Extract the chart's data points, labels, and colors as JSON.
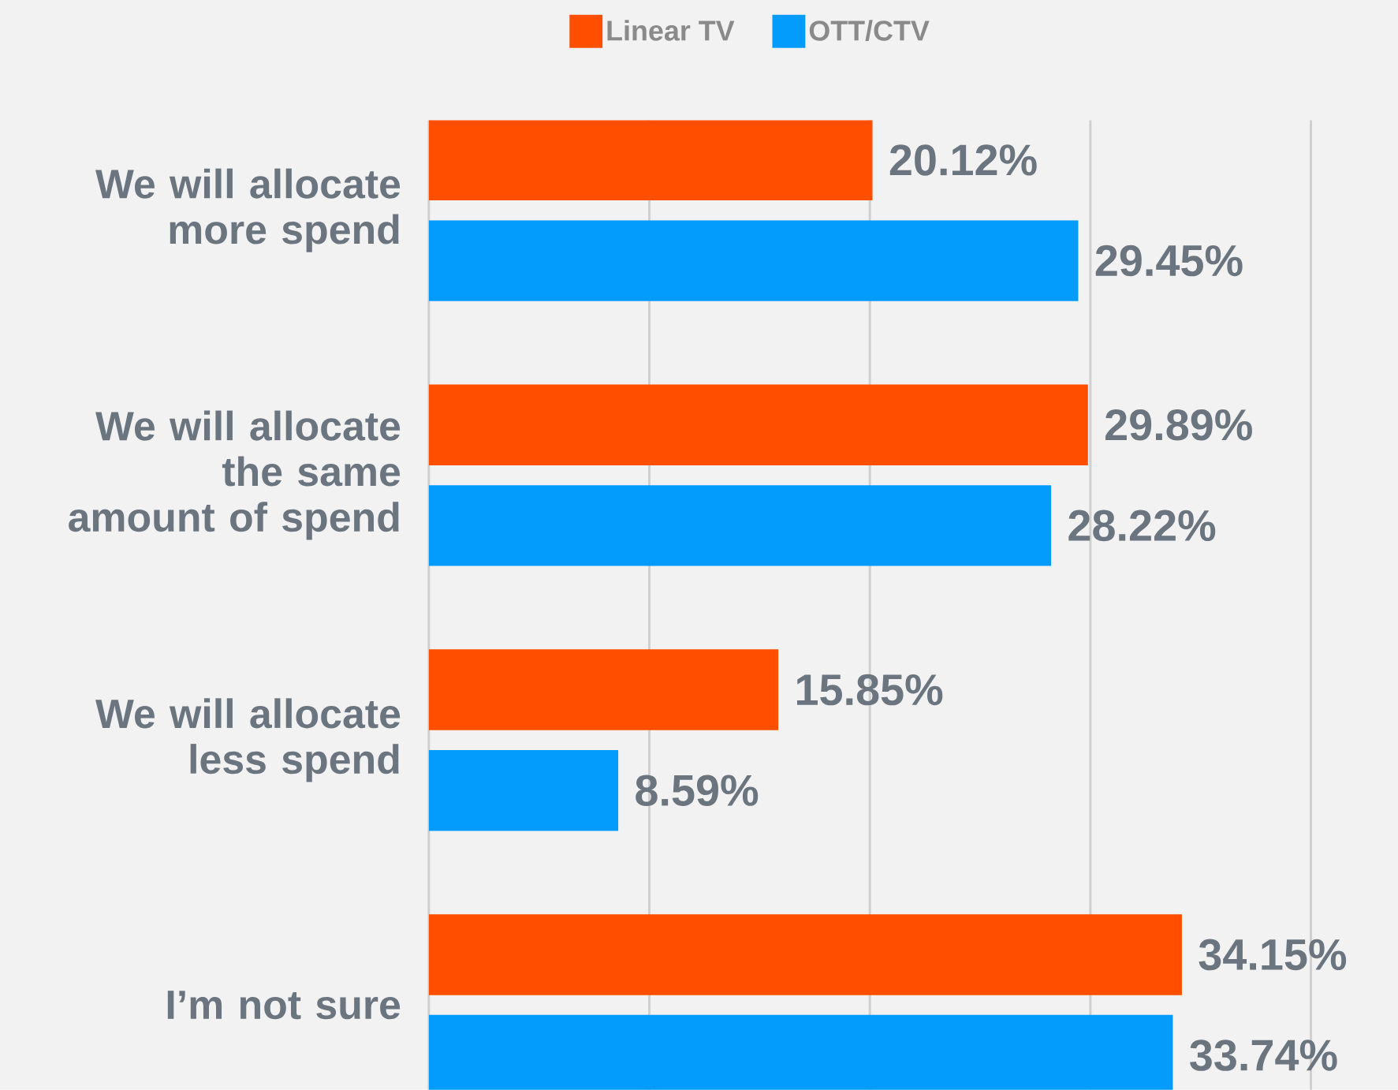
{
  "chart_data": {
    "type": "bar",
    "orientation": "horizontal",
    "categories": [
      "We will allocate more spend",
      "We will allocate the same amount of spend",
      "We will allocate less spend",
      "I’m not sure"
    ],
    "series": [
      {
        "name": "Linear TV",
        "color": "#ff4e00",
        "values": [
          20.12,
          29.89,
          15.85,
          34.15
        ],
        "value_labels": [
          "20.12%",
          "29.89%",
          "15.85%",
          "34.15%"
        ]
      },
      {
        "name": "OTT/CTV",
        "color": "#039cfd",
        "values": [
          29.45,
          28.22,
          8.59,
          33.74
        ],
        "value_labels": [
          "29.45%",
          "28.22%",
          "8.59%",
          "33.74%"
        ]
      }
    ],
    "xlim": [
      0,
      43.95
    ],
    "xticks": [
      {
        "value": 0,
        "label": null
      },
      {
        "value": 10,
        "label": null
      },
      {
        "value": 20,
        "label": null
      },
      {
        "value": 30,
        "label": null
      },
      {
        "value": 40,
        "label": null
      }
    ],
    "grid": "x",
    "legend": "top",
    "tick_labels": "y"
  }
}
